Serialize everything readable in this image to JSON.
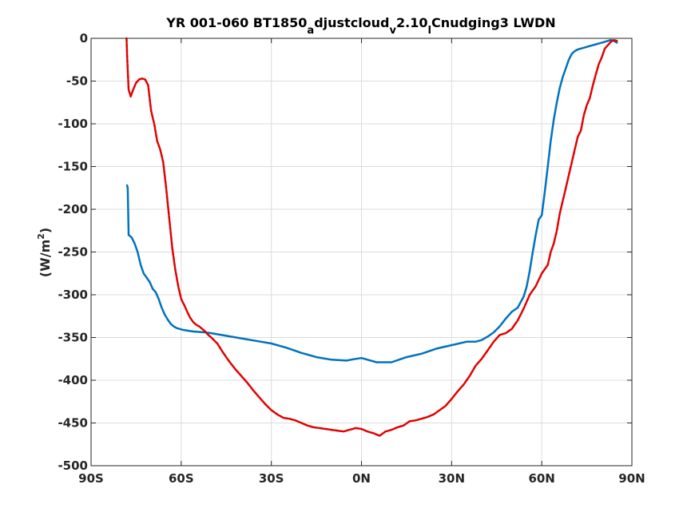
{
  "chart_data": {
    "type": "line",
    "title_parts": {
      "t1": "YR 001-060 BT1850",
      "s1": "a",
      "t2": "djustcloud",
      "s2": "v",
      "t3": "2.10",
      "s3": "l",
      "t4": "Cnudging3 LWDN"
    },
    "ylabel_parts": {
      "main": "(W/m",
      "sup": "2",
      "end": ")"
    },
    "xlim": [
      -90,
      90
    ],
    "ylim": [
      -500,
      0
    ],
    "x_ticks": [
      -90,
      -60,
      -30,
      0,
      30,
      60,
      90
    ],
    "x_tick_labels": [
      "90S",
      "60S",
      "30S",
      "0N",
      "30N",
      "60N",
      "90N"
    ],
    "y_ticks": [
      0,
      -50,
      -100,
      -150,
      -200,
      -250,
      -300,
      -350,
      -400,
      -450,
      -500
    ],
    "y_tick_labels": [
      "0",
      "-50",
      "-100",
      "-150",
      "-200",
      "-250",
      "-300",
      "-350",
      "-400",
      "-450",
      "-500"
    ],
    "grid": true,
    "series": [
      {
        "color": "#0072BD",
        "style": "solid",
        "x": [
          -78,
          -77.8,
          -77.5,
          -76.5,
          -75.5,
          -74.5,
          -73.5,
          -72.5,
          -71.5,
          -70.5,
          -69.5,
          -68.5,
          -67.5,
          -66.5,
          -65.5,
          -64.5,
          -63.5,
          -62.5,
          -61.5,
          -60.5,
          -59.5,
          -58,
          -56,
          -54,
          -52,
          -50,
          -45,
          -40,
          -35,
          -30,
          -25,
          -20,
          -15,
          -10,
          -5,
          -2,
          0,
          2,
          5,
          10,
          15,
          20,
          25,
          30,
          35,
          38,
          40,
          42,
          44,
          46,
          48,
          50,
          52,
          54,
          55,
          56,
          57,
          58,
          59,
          60,
          61,
          62,
          63,
          64,
          65,
          66,
          67,
          68,
          69,
          70,
          71,
          72,
          73,
          74,
          75,
          76,
          77,
          78,
          79,
          80,
          81,
          82,
          83,
          84,
          85
        ],
        "y": [
          -172,
          -175,
          -230,
          -233,
          -240,
          -250,
          -265,
          -275,
          -280,
          -285,
          -293,
          -297,
          -305,
          -315,
          -323,
          -329,
          -334,
          -337,
          -339,
          -340,
          -341,
          -342,
          -343,
          -343.5,
          -344,
          -345,
          -348,
          -351,
          -354,
          -357,
          -362,
          -368,
          -373,
          -376,
          -377,
          -375,
          -374,
          -376,
          -379,
          -379,
          -373,
          -369,
          -363,
          -359,
          -355,
          -355,
          -353,
          -349,
          -344,
          -337,
          -328,
          -320,
          -315,
          -302,
          -290,
          -272,
          -250,
          -230,
          -212,
          -207,
          -180,
          -150,
          -120,
          -95,
          -75,
          -58,
          -45,
          -35,
          -25,
          -18,
          -15,
          -13,
          -12,
          -11,
          -10,
          -9,
          -8,
          -7,
          -6,
          -5,
          -4,
          -3,
          -2,
          -3,
          -5
        ]
      },
      {
        "color": "#E00000",
        "style": "dashed",
        "x": [
          -78.2,
          -78,
          -77.5,
          -76.8,
          -76,
          -75,
          -74,
          -73,
          -72,
          -71,
          -70.5,
          -70,
          -69,
          -68.5,
          -68,
          -67,
          -66,
          -65,
          -64,
          -63,
          -62,
          -61,
          -60,
          -59,
          -58,
          -57,
          -56,
          -55,
          -54,
          -53,
          -52,
          -51,
          -50,
          -48,
          -46,
          -44,
          -42,
          -40,
          -38,
          -36,
          -34,
          -32,
          -30,
          -28,
          -26,
          -24,
          -22,
          -20,
          -18,
          -16,
          -14,
          -12,
          -10,
          -8,
          -6,
          -4,
          -2,
          0,
          2,
          4,
          6,
          8,
          10,
          12,
          14,
          16,
          18,
          20,
          22,
          24,
          26,
          28,
          30,
          32,
          34,
          36,
          38,
          40,
          42,
          44,
          46,
          48,
          50,
          52,
          54,
          56,
          58,
          60,
          62,
          63,
          64,
          65,
          66,
          67,
          68,
          69,
          70,
          71,
          72,
          73,
          74,
          75,
          76,
          77,
          78,
          79,
          80,
          81,
          82,
          83,
          84,
          85
        ],
        "y": [
          0,
          -20,
          -60,
          -68,
          -60,
          -52,
          -48,
          -47,
          -48,
          -55,
          -70,
          -85,
          -100,
          -110,
          -120,
          -130,
          -145,
          -175,
          -210,
          -245,
          -270,
          -290,
          -305,
          -312,
          -320,
          -327,
          -332,
          -335,
          -337,
          -340,
          -343,
          -347,
          -350,
          -357,
          -368,
          -378,
          -387,
          -395,
          -403,
          -412,
          -420,
          -428,
          -435,
          -440,
          -444,
          -445,
          -447,
          -450,
          -453,
          -455,
          -456,
          -457,
          -458,
          -459,
          -460,
          -458,
          -456,
          -457,
          -460,
          -462,
          -465,
          -460,
          -458,
          -455,
          -453,
          -448,
          -447,
          -445,
          -443,
          -440,
          -435,
          -430,
          -422,
          -413,
          -405,
          -395,
          -383,
          -375,
          -365,
          -355,
          -347,
          -345,
          -340,
          -330,
          -316,
          -300,
          -290,
          -275,
          -265,
          -250,
          -240,
          -225,
          -205,
          -190,
          -175,
          -160,
          -145,
          -130,
          -115,
          -108,
          -90,
          -78,
          -70,
          -55,
          -42,
          -30,
          -22,
          -12,
          -8,
          -4,
          -2,
          -3
        ]
      }
    ]
  }
}
